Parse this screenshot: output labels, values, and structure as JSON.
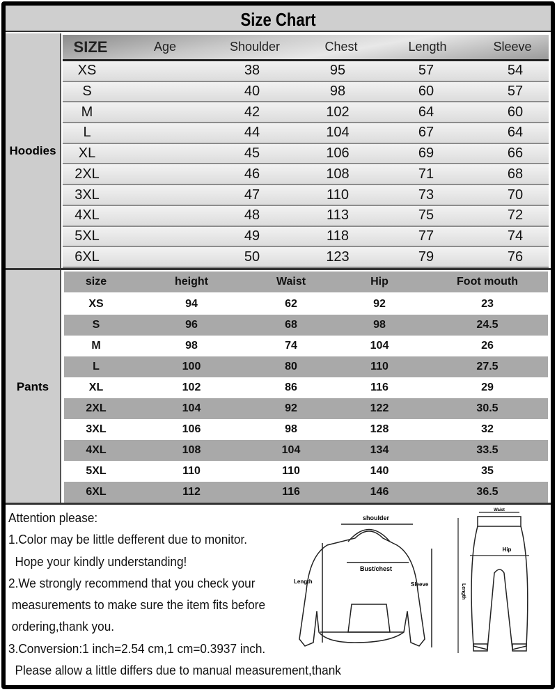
{
  "title": "Size Chart",
  "hoodies": {
    "label": "Hoodies",
    "headers": [
      "SIZE",
      "Age",
      "Shoulder",
      "Chest",
      "Length",
      "Sleeve"
    ],
    "rows": [
      [
        "XS",
        "",
        "38",
        "95",
        "57",
        "54"
      ],
      [
        "S",
        "",
        "40",
        "98",
        "60",
        "57"
      ],
      [
        "M",
        "",
        "42",
        "102",
        "64",
        "60"
      ],
      [
        "L",
        "",
        "44",
        "104",
        "67",
        "64"
      ],
      [
        "XL",
        "",
        "45",
        "106",
        "69",
        "66"
      ],
      [
        "2XL",
        "",
        "46",
        "108",
        "71",
        "68"
      ],
      [
        "3XL",
        "",
        "47",
        "110",
        "73",
        "70"
      ],
      [
        "4XL",
        "",
        "48",
        "113",
        "75",
        "72"
      ],
      [
        "5XL",
        "",
        "49",
        "118",
        "77",
        "74"
      ],
      [
        "6XL",
        "",
        "50",
        "123",
        "79",
        "76"
      ]
    ]
  },
  "pants": {
    "label": "Pants",
    "headers": [
      "size",
      "height",
      "Waist",
      "Hip",
      "Foot mouth"
    ],
    "rows": [
      [
        "XS",
        "94",
        "62",
        "92",
        "23"
      ],
      [
        "S",
        "96",
        "68",
        "98",
        "24.5"
      ],
      [
        "M",
        "98",
        "74",
        "104",
        "26"
      ],
      [
        "L",
        "100",
        "80",
        "110",
        "27.5"
      ],
      [
        "XL",
        "102",
        "86",
        "116",
        "29"
      ],
      [
        "2XL",
        "104",
        "92",
        "122",
        "30.5"
      ],
      [
        "3XL",
        "106",
        "98",
        "128",
        "32"
      ],
      [
        "4XL",
        "108",
        "104",
        "134",
        "33.5"
      ],
      [
        "5XL",
        "110",
        "110",
        "140",
        "35"
      ],
      [
        "6XL",
        "112",
        "116",
        "146",
        "36.5"
      ]
    ]
  },
  "notes": [
    "Attention please:",
    "1.Color may be little defferent due to monitor.",
    "  Hope your kindly understanding!",
    "2.We strongly recommend that you check your",
    " measurements to make sure the item fits before",
    " ordering,thank you.",
    "3.Conversion:1 inch=2.54 cm,1 cm=0.3937 inch.",
    "  Please allow a little differs due to manual measurement,thank"
  ],
  "diagram": {
    "hoodie": {
      "shoulder": "shoulder",
      "chest": "Bust/chest",
      "length": "Length",
      "sleeve": "Sleeve"
    },
    "pants": {
      "waist": "Waist",
      "hip": "Hip",
      "length": "Length"
    }
  }
}
